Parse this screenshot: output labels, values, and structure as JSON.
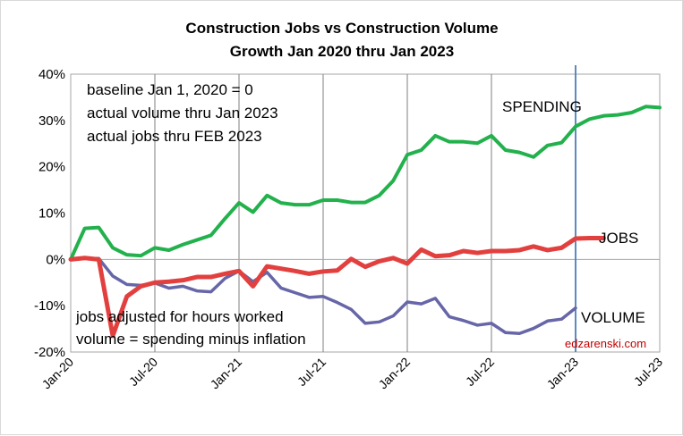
{
  "chart_data": {
    "type": "line",
    "title": [
      "Construction Jobs vs Construction Volume",
      "Growth Jan 2020 thru Jan 2023"
    ],
    "x_tick_labels": [
      "Jan-20",
      "Jul-20",
      "Jan-21",
      "Jul-21",
      "Jan-22",
      "Jul-22",
      "Jan-23",
      "Jul-23"
    ],
    "x_range": [
      "Jan-20",
      "Jul-23"
    ],
    "y_tick_labels": [
      "-20%",
      "-10%",
      "0%",
      "10%",
      "20%",
      "30%",
      "40%"
    ],
    "ylim": [
      -20,
      40
    ],
    "y_unit": "%",
    "grid": "vertical lines at each x tick",
    "annotations": [
      "baseline Jan 1, 2020 = 0",
      "actual volume thru Jan 2023",
      "actual jobs thru FEB 2023",
      "jobs adjusted for hours worked",
      "volume = spending minus inflation"
    ],
    "marker_line": {
      "x": "Jan-23",
      "color": "#4a7ebb"
    },
    "watermark": "edzarenski.com",
    "series": [
      {
        "name": "SPENDING",
        "color": "#22b14c",
        "x": [
          "Jan-20",
          "Feb-20",
          "Mar-20",
          "Apr-20",
          "May-20",
          "Jun-20",
          "Jul-20",
          "Aug-20",
          "Sep-20",
          "Oct-20",
          "Nov-20",
          "Dec-20",
          "Jan-21",
          "Feb-21",
          "Mar-21",
          "Apr-21",
          "May-21",
          "Jun-21",
          "Jul-21",
          "Aug-21",
          "Sep-21",
          "Oct-21",
          "Nov-21",
          "Dec-21",
          "Jan-22",
          "Feb-22",
          "Mar-22",
          "Apr-22",
          "May-22",
          "Jun-22",
          "Jul-22",
          "Aug-22",
          "Sep-22",
          "Oct-22",
          "Nov-22",
          "Dec-22",
          "Jan-23",
          "Feb-23",
          "Mar-23",
          "Apr-23",
          "May-23",
          "Jun-23",
          "Jul-23"
        ],
        "values": [
          0,
          6.7,
          6.9,
          2.5,
          1.0,
          0.8,
          2.5,
          2.0,
          3.2,
          4.2,
          5.2,
          8.8,
          12.2,
          10.2,
          13.8,
          12.2,
          11.8,
          11.8,
          12.8,
          12.8,
          12.3,
          12.3,
          13.8,
          17.0,
          22.6,
          23.6,
          26.7,
          25.4,
          25.4,
          25.1,
          26.7,
          23.6,
          23.1,
          22.1,
          24.6,
          25.2,
          28.7,
          30.3,
          31.0,
          31.2,
          31.7,
          33.0,
          32.8
        ]
      },
      {
        "name": "JOBS",
        "color": "#e2403f",
        "x": [
          "Jan-20",
          "Feb-20",
          "Mar-20",
          "Apr-20",
          "May-20",
          "Jun-20",
          "Jul-20",
          "Aug-20",
          "Sep-20",
          "Oct-20",
          "Nov-20",
          "Dec-20",
          "Jan-21",
          "Feb-21",
          "Mar-21",
          "Apr-21",
          "May-21",
          "Jun-21",
          "Jul-21",
          "Aug-21",
          "Sep-21",
          "Oct-21",
          "Nov-21",
          "Dec-21",
          "Jan-22",
          "Feb-22",
          "Mar-22",
          "Apr-22",
          "May-22",
          "Jun-22",
          "Jul-22",
          "Aug-22",
          "Sep-22",
          "Oct-22",
          "Nov-22",
          "Dec-22",
          "Jan-23",
          "Feb-23",
          "Mar-23"
        ],
        "values": [
          0,
          0.3,
          0,
          -16.5,
          -8.0,
          -5.8,
          -5.0,
          -4.8,
          -4.5,
          -3.8,
          -3.8,
          -3.1,
          -2.5,
          -5.8,
          -1.5,
          -2.0,
          -2.5,
          -3.1,
          -2.6,
          -2.4,
          0.1,
          -1.6,
          -0.4,
          0.3,
          -0.9,
          2.1,
          0.7,
          0.9,
          1.8,
          1.4,
          1.8,
          1.8,
          2.0,
          2.8,
          2.0,
          2.5,
          4.5,
          4.6,
          4.6
        ]
      },
      {
        "name": "VOLUME",
        "color": "#6666a8",
        "x": [
          "Jan-20",
          "Feb-20",
          "Mar-20",
          "Apr-20",
          "May-20",
          "Jun-20",
          "Jul-20",
          "Aug-20",
          "Sep-20",
          "Oct-20",
          "Nov-20",
          "Dec-20",
          "Jan-21",
          "Feb-21",
          "Mar-21",
          "Apr-21",
          "May-21",
          "Jun-21",
          "Jul-21",
          "Aug-21",
          "Sep-21",
          "Oct-21",
          "Nov-21",
          "Dec-21",
          "Jan-22",
          "Feb-22",
          "Mar-22",
          "Apr-22",
          "May-22",
          "Jun-22",
          "Jul-22",
          "Aug-22",
          "Sep-22",
          "Oct-22",
          "Nov-22",
          "Dec-22",
          "Jan-23"
        ],
        "values": [
          0,
          0.2,
          0.2,
          -3.6,
          -5.4,
          -5.6,
          -5.1,
          -6.2,
          -5.8,
          -6.8,
          -7.0,
          -4.1,
          -2.5,
          -4.8,
          -2.8,
          -6.2,
          -7.2,
          -8.2,
          -8.0,
          -9.3,
          -10.8,
          -13.8,
          -13.5,
          -12.2,
          -9.2,
          -9.6,
          -8.4,
          -12.4,
          -13.2,
          -14.2,
          -13.8,
          -15.8,
          -16.0,
          -14.9,
          -13.3,
          -12.9,
          -10.5
        ]
      }
    ]
  }
}
